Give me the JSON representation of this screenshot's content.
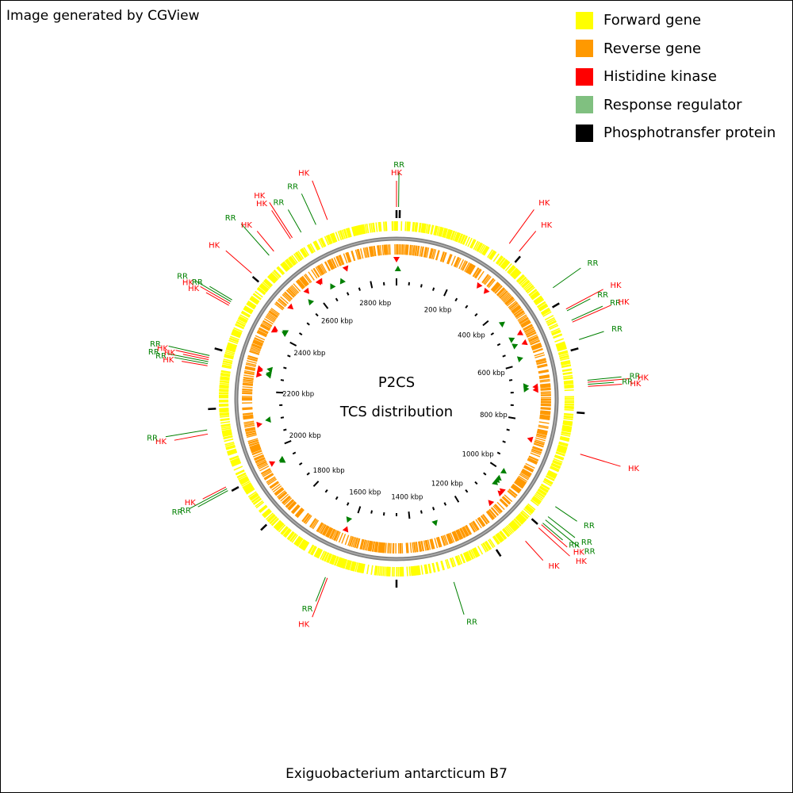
{
  "header": {
    "credit": "Image generated by CGView"
  },
  "footer": {
    "organism": "Exiguobacterium antarcticum B7"
  },
  "center": {
    "line1": "P2CS",
    "line2": "TCS distribution"
  },
  "legend": [
    {
      "label": "Forward gene",
      "color": "#ffff00"
    },
    {
      "label": "Reverse gene",
      "color": "#ff9900"
    },
    {
      "label": "Histidine kinase",
      "color": "#ff0000"
    },
    {
      "label": "Response regulator",
      "color": "#80c080"
    },
    {
      "label": "Phosphotransfer protein",
      "color": "#000000"
    }
  ],
  "colors": {
    "forward": "#ffff00",
    "reverse": "#ff9900",
    "hk": "#ff0000",
    "rr": "#008000",
    "hk_line": "#ff0000",
    "rr_line": "#008000",
    "backbone": "#808080",
    "ticks": "#000000"
  },
  "genome": {
    "length_kbp": 2900
  },
  "tick_labels": [
    {
      "kbp": 200,
      "label": "200 kbp"
    },
    {
      "kbp": 400,
      "label": "400 kbp"
    },
    {
      "kbp": 600,
      "label": "600 kbp"
    },
    {
      "kbp": 800,
      "label": "800 kbp"
    },
    {
      "kbp": 1000,
      "label": "1000 kbp"
    },
    {
      "kbp": 1200,
      "label": "1200 kbp"
    },
    {
      "kbp": 1400,
      "label": "1400 kbp"
    },
    {
      "kbp": 1600,
      "label": "1600 kbp"
    },
    {
      "kbp": 1800,
      "label": "1800 kbp"
    },
    {
      "kbp": 2000,
      "label": "2000 kbp"
    },
    {
      "kbp": 2200,
      "label": "2200 kbp"
    },
    {
      "kbp": 2400,
      "label": "2400 kbp"
    },
    {
      "kbp": 2600,
      "label": "2600 kbp"
    },
    {
      "kbp": 2800,
      "label": "2800 kbp"
    }
  ],
  "features": [
    {
      "label": "HK",
      "type": "hk",
      "kbp": 0
    },
    {
      "label": "RR",
      "type": "rr",
      "kbp": 5
    },
    {
      "label": "HK",
      "type": "hk",
      "kbp": 290
    },
    {
      "label": "HK",
      "type": "hk",
      "kbp": 320
    },
    {
      "label": "RR",
      "type": "rr",
      "kbp": 440
    },
    {
      "label": "HK",
      "type": "hk",
      "kbp": 500
    },
    {
      "label": "RR",
      "type": "rr",
      "kbp": 505
    },
    {
      "label": "RR",
      "type": "rr",
      "kbp": 530
    },
    {
      "label": "HK",
      "type": "hk",
      "kbp": 535
    },
    {
      "label": "RR",
      "type": "rr",
      "kbp": 580
    },
    {
      "label": "RR",
      "type": "rr",
      "kbp": 680
    },
    {
      "label": "HK",
      "type": "hk",
      "kbp": 685
    },
    {
      "label": "RR",
      "type": "rr",
      "kbp": 690
    },
    {
      "label": "HK",
      "type": "hk",
      "kbp": 695
    },
    {
      "label": "HK",
      "type": "hk",
      "kbp": 860
    },
    {
      "label": "RR",
      "type": "rr",
      "kbp": 1000
    },
    {
      "label": "RR",
      "type": "rr",
      "kbp": 1030
    },
    {
      "label": "RR",
      "type": "rr",
      "kbp": 1040
    },
    {
      "label": "RR",
      "type": "rr",
      "kbp": 1050
    },
    {
      "label": "HK",
      "type": "hk",
      "kbp": 1055
    },
    {
      "label": "HK",
      "type": "hk",
      "kbp": 1065
    },
    {
      "label": "HK",
      "type": "hk",
      "kbp": 1110
    },
    {
      "label": "RR",
      "type": "rr",
      "kbp": 1310
    },
    {
      "label": "HK",
      "type": "hk",
      "kbp": 1620
    },
    {
      "label": "RR",
      "type": "rr",
      "kbp": 1625
    },
    {
      "label": "RR",
      "type": "rr",
      "kbp": 1945
    },
    {
      "label": "RR",
      "type": "rr",
      "kbp": 1950
    },
    {
      "label": "HK",
      "type": "hk",
      "kbp": 1955
    },
    {
      "label": "HK",
      "type": "hk",
      "kbp": 2090
    },
    {
      "label": "RR",
      "type": "rr",
      "kbp": 2100
    },
    {
      "label": "HK",
      "type": "hk",
      "kbp": 2255
    },
    {
      "label": "RR",
      "type": "rr",
      "kbp": 2260
    },
    {
      "label": "RR",
      "type": "rr",
      "kbp": 2265
    },
    {
      "label": "HK",
      "type": "hk",
      "kbp": 2270
    },
    {
      "label": "HK",
      "type": "hk",
      "kbp": 2275
    },
    {
      "label": "RR",
      "type": "rr",
      "kbp": 2280
    },
    {
      "label": "HK",
      "type": "hk",
      "kbp": 2410
    },
    {
      "label": "HK",
      "type": "hk",
      "kbp": 2415
    },
    {
      "label": "RR",
      "type": "rr",
      "kbp": 2420
    },
    {
      "label": "RR",
      "type": "rr",
      "kbp": 2425
    },
    {
      "label": "HK",
      "type": "hk",
      "kbp": 2505
    },
    {
      "label": "RR",
      "type": "rr",
      "kbp": 2565
    },
    {
      "label": "HK",
      "type": "hk",
      "kbp": 2580
    },
    {
      "label": "HK",
      "type": "hk",
      "kbp": 2630
    },
    {
      "label": "HK",
      "type": "hk",
      "kbp": 2635
    },
    {
      "label": "RR",
      "type": "rr",
      "kbp": 2660
    },
    {
      "label": "RR",
      "type": "rr",
      "kbp": 2700
    },
    {
      "label": "HK",
      "type": "hk",
      "kbp": 2730
    }
  ],
  "phosphotransfer_kbp": [
    0,
    8,
    330,
    480,
    600,
    760,
    1060,
    1180,
    1450,
    1820,
    1940,
    2150,
    2300,
    2500
  ]
}
